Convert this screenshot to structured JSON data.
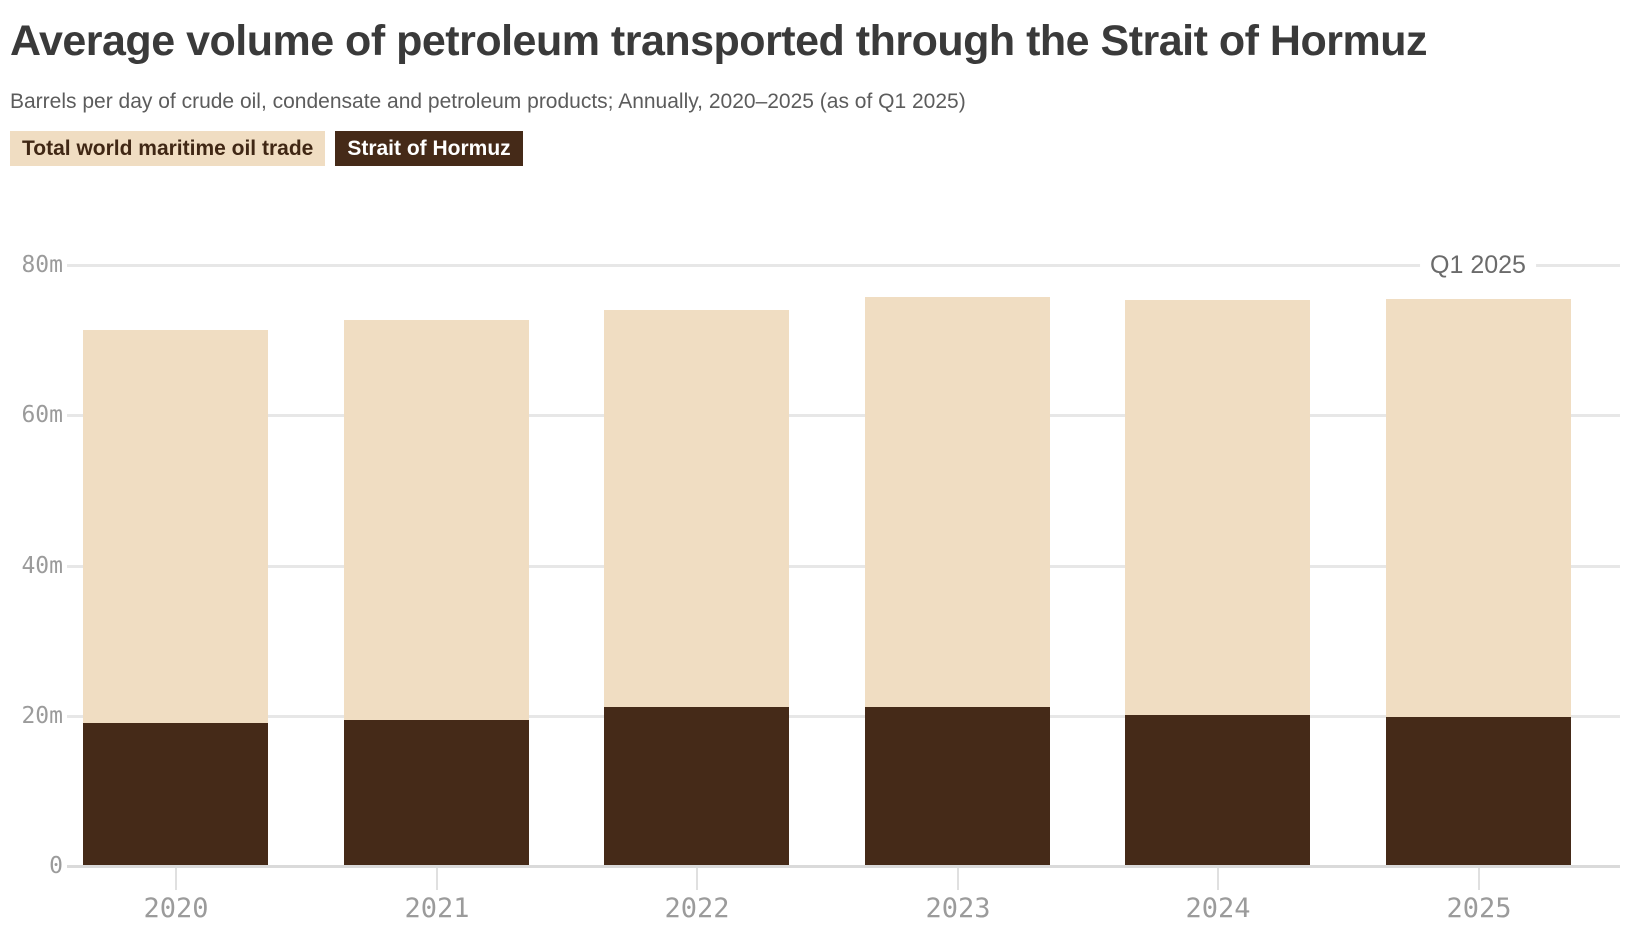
{
  "header": {
    "title": "Average volume of petroleum transported through the Strait of Hormuz",
    "subtitle": "Barrels per day of crude oil, condensate and petroleum products; Annually, 2020–2025 (as of Q1 2025)"
  },
  "legend": {
    "items": [
      {
        "label": "Total world maritime oil trade",
        "bg": "#f0ddc2",
        "fg": "#402714"
      },
      {
        "label": "Strait of Hormuz",
        "bg": "#452a18",
        "fg": "#ffffff"
      }
    ]
  },
  "annotation": {
    "label": "Q1 2025"
  },
  "colors": {
    "total_trade_bar": "#f0ddc2",
    "hormuz_bar": "#452a18",
    "title_text": "#3a3a3a",
    "subtitle_text": "#5c5c5c",
    "axis_text": "#9b9b9b",
    "gridline": "#e7e7e7"
  },
  "chart_data": {
    "type": "bar",
    "overlay": true,
    "unit": "million barrels per day",
    "title": "Average volume of petroleum transported through the Strait of Hormuz",
    "subtitle": "Barrels per day of crude oil, condensate and petroleum products; Annually, 2020–2025 (as of Q1 2025)",
    "categories": [
      "2020",
      "2021",
      "2022",
      "2023",
      "2024",
      "2025"
    ],
    "series": [
      {
        "name": "Total world maritime oil trade",
        "color": "#f0ddc2",
        "values": [
          71.4,
          72.7,
          74.0,
          75.7,
          75.3,
          75.5
        ]
      },
      {
        "name": "Strait of Hormuz",
        "color": "#452a18",
        "values": [
          19.0,
          19.4,
          21.2,
          21.1,
          20.1,
          19.8
        ]
      }
    ],
    "xlabel": "",
    "ylabel": "",
    "ylim": [
      0,
      80
    ],
    "yticks": [
      {
        "value": 0,
        "label": "0"
      },
      {
        "value": 20,
        "label": "20m"
      },
      {
        "value": 40,
        "label": "40m"
      },
      {
        "value": 60,
        "label": "60m"
      },
      {
        "value": 80,
        "label": "80m"
      }
    ],
    "grid": true,
    "legend_position": "top-left",
    "annotations": [
      {
        "text": "Q1 2025",
        "category": "2025",
        "y": 80
      }
    ]
  }
}
